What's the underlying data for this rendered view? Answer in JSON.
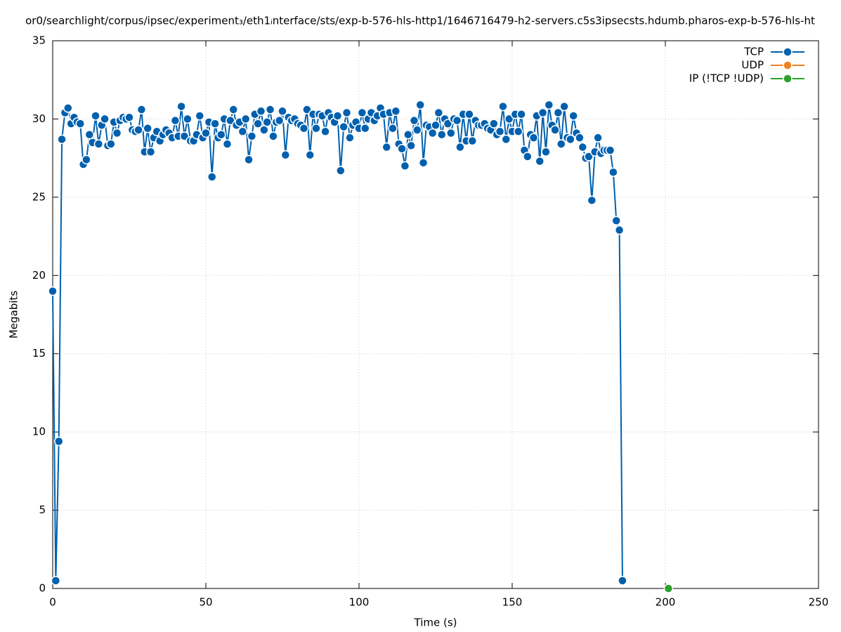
{
  "chart_data": {
    "type": "line",
    "title": "or0/searchlight/corpus/ipsec/experiment₃/eth1ᵢnterface/sts/exp-b-576-hls-http1/1646716479-h2-servers.c5s3ipsecsts.hdumb.pharos-exp-b-576-hls-ht",
    "x_label": "Time (s)",
    "y_label": "Megabits",
    "xlim": [
      0,
      250
    ],
    "xticks": [
      0,
      50,
      100,
      150,
      200,
      250
    ],
    "ylim": [
      0,
      35
    ],
    "yticks": [
      0,
      5,
      10,
      15,
      20,
      25,
      30,
      35
    ],
    "grid": true,
    "legend": "top-right",
    "series": [
      {
        "name": "TCP",
        "color": "#0060ad",
        "x": [
          0,
          1,
          2,
          3,
          4,
          5,
          6,
          7,
          8,
          9,
          10,
          11,
          12,
          13,
          14,
          15,
          16,
          17,
          18,
          19,
          20,
          21,
          22,
          23,
          24,
          25,
          26,
          27,
          28,
          29,
          30,
          31,
          32,
          33,
          34,
          35,
          36,
          37,
          38,
          39,
          40,
          41,
          42,
          43,
          44,
          45,
          46,
          47,
          48,
          49,
          50,
          51,
          52,
          53,
          54,
          55,
          56,
          57,
          58,
          59,
          60,
          61,
          62,
          63,
          64,
          65,
          66,
          67,
          68,
          69,
          70,
          71,
          72,
          73,
          74,
          75,
          76,
          77,
          78,
          79,
          80,
          81,
          82,
          83,
          84,
          85,
          86,
          87,
          88,
          89,
          90,
          91,
          92,
          93,
          94,
          95,
          96,
          97,
          98,
          99,
          100,
          101,
          102,
          103,
          104,
          105,
          106,
          107,
          108,
          109,
          110,
          111,
          112,
          113,
          114,
          115,
          116,
          117,
          118,
          119,
          120,
          121,
          122,
          123,
          124,
          125,
          126,
          127,
          128,
          129,
          130,
          131,
          132,
          133,
          134,
          135,
          136,
          137,
          138,
          139,
          140,
          141,
          142,
          143,
          144,
          145,
          146,
          147,
          148,
          149,
          150,
          151,
          152,
          153,
          154,
          155,
          156,
          157,
          158,
          159,
          160,
          161,
          162,
          163,
          164,
          165,
          166,
          167,
          168,
          169,
          170,
          171,
          172,
          173,
          174,
          175,
          176,
          177,
          178,
          179,
          180,
          181,
          182,
          183,
          184,
          185,
          186
        ],
        "values": [
          19.0,
          0.5,
          9.4,
          28.7,
          30.4,
          30.7,
          29.7,
          30.1,
          29.8,
          29.7,
          27.1,
          27.4,
          29.0,
          28.5,
          30.2,
          28.4,
          29.6,
          30.0,
          28.3,
          28.4,
          29.8,
          29.1,
          29.9,
          30.1,
          30.0,
          30.1,
          29.3,
          29.2,
          29.3,
          30.6,
          27.9,
          29.4,
          27.9,
          28.8,
          29.2,
          28.6,
          29.0,
          29.3,
          29.1,
          28.8,
          29.9,
          28.9,
          30.8,
          28.9,
          30.0,
          28.6,
          28.6,
          29.0,
          30.2,
          28.8,
          29.1,
          29.8,
          26.3,
          29.7,
          28.8,
          29.0,
          30.0,
          28.4,
          29.9,
          30.6,
          29.6,
          29.8,
          29.2,
          30.0,
          27.4,
          28.9,
          30.3,
          29.7,
          30.5,
          29.3,
          29.8,
          30.6,
          28.9,
          29.8,
          29.9,
          30.5,
          27.7,
          30.1,
          29.9,
          30.0,
          29.7,
          29.6,
          29.4,
          30.6,
          27.7,
          30.3,
          29.4,
          30.3,
          30.2,
          29.2,
          30.4,
          30.1,
          29.8,
          30.2,
          26.7,
          29.5,
          30.4,
          28.8,
          29.6,
          29.8,
          29.4,
          30.4,
          29.4,
          30.0,
          30.4,
          29.9,
          30.2,
          30.7,
          30.3,
          28.2,
          30.4,
          29.4,
          30.5,
          28.4,
          28.1,
          27.0,
          29.0,
          28.3,
          29.9,
          29.3,
          30.9,
          27.2,
          29.6,
          29.5,
          29.1,
          29.6,
          30.4,
          29.0,
          30.0,
          29.7,
          29.1,
          30.0,
          29.9,
          28.2,
          30.3,
          28.6,
          30.3,
          28.6,
          29.9,
          29.6,
          29.6,
          29.7,
          29.4,
          29.3,
          29.7,
          29.0,
          29.2,
          30.8,
          28.7,
          30.0,
          29.2,
          30.3,
          29.2,
          30.3,
          28.0,
          27.6,
          29.0,
          28.8,
          30.2,
          27.3,
          30.4,
          27.9,
          30.9,
          29.6,
          29.3,
          30.4,
          28.4,
          30.8,
          28.8,
          28.7,
          30.2,
          29.1,
          28.8,
          28.2,
          27.5,
          27.6,
          24.8,
          27.9,
          28.8,
          27.8,
          28.0,
          28.0,
          28.0,
          26.6,
          23.5,
          22.9,
          0.5
        ]
      },
      {
        "name": "UDP",
        "color": "#f28022",
        "x": [],
        "values": []
      },
      {
        "name": "IP (!TCP  !UDP)",
        "color": "#2ca02c",
        "x": [
          201
        ],
        "values": [
          0
        ]
      }
    ]
  }
}
